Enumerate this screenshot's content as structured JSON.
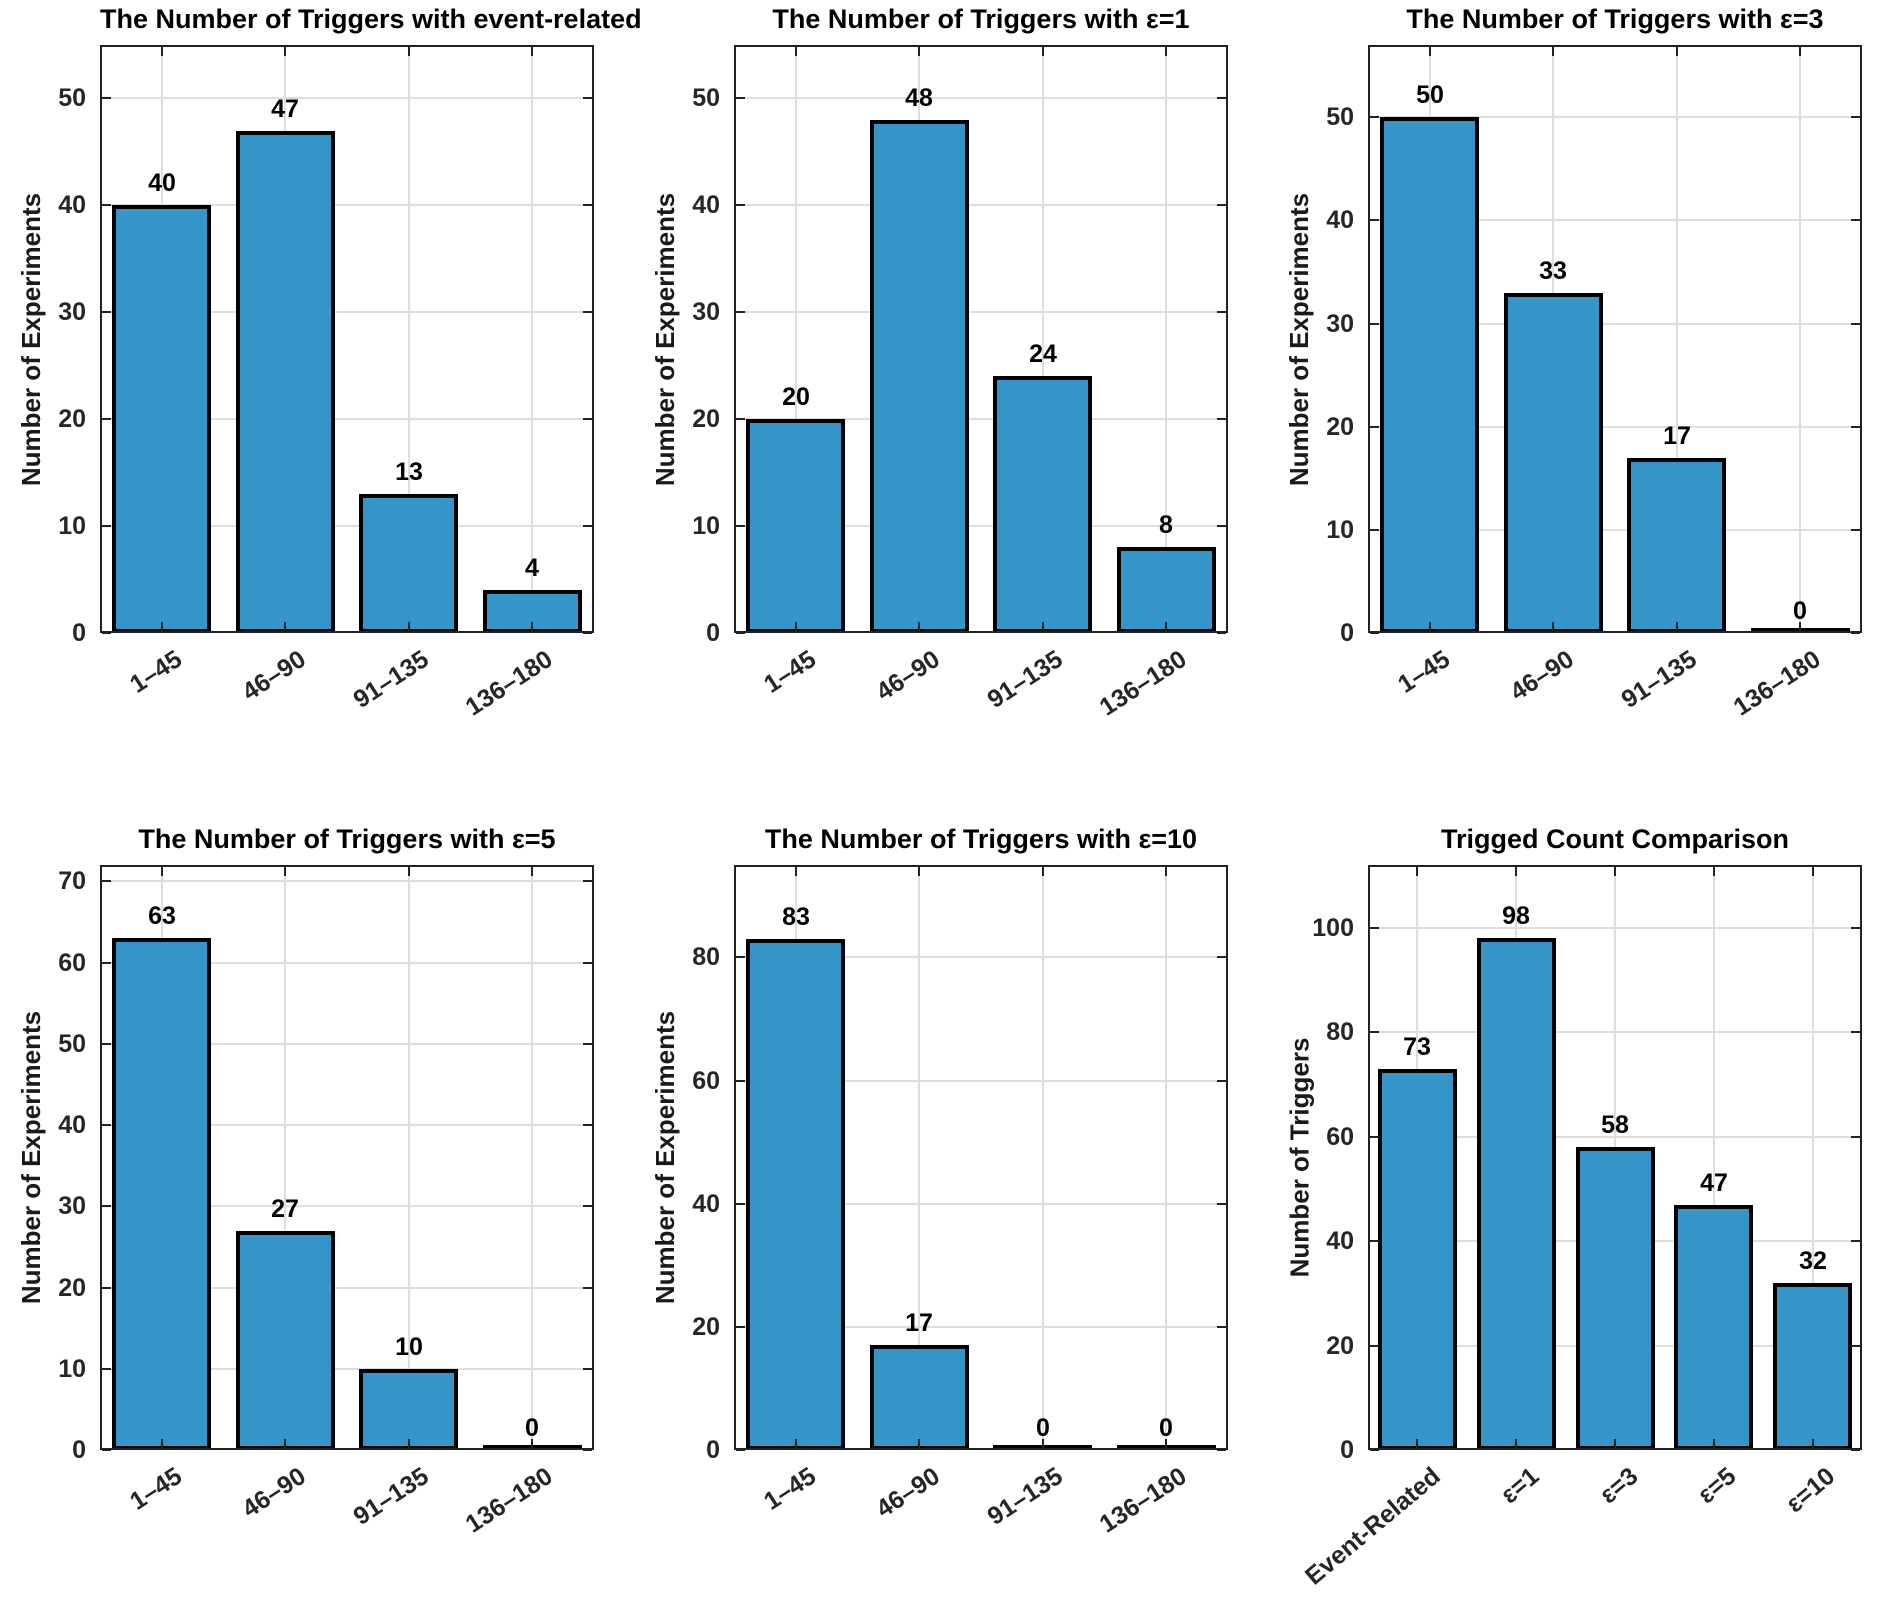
{
  "figure": {
    "background": "#ffffff"
  },
  "colors": {
    "bar_fill": "#3496c8",
    "bar_edge": "#000000",
    "axis": "#222222",
    "grid": "#dedede",
    "tick_text": "#262626",
    "title_text": "#000000"
  },
  "chart_data": [
    {
      "type": "bar",
      "title": "The Number of Triggers with event-related",
      "ylabel": "Number of Experiments",
      "xlabel": "",
      "categories": [
        "1–45",
        "46–90",
        "91–135",
        "136–180"
      ],
      "values": [
        40,
        47,
        13,
        4
      ],
      "yticks": [
        0,
        10,
        20,
        30,
        40,
        50
      ],
      "ylim": [
        0,
        55
      ],
      "grid": "on",
      "bar_labels": true,
      "legend": "none",
      "x_tick_rotation_deg": 33,
      "bar_width_ratio": 0.8
    },
    {
      "type": "bar",
      "title": "The Number of Triggers with ε=1",
      "ylabel": "Number of Experiments",
      "xlabel": "",
      "categories": [
        "1–45",
        "46–90",
        "91–135",
        "136–180"
      ],
      "values": [
        20,
        48,
        24,
        8
      ],
      "yticks": [
        0,
        10,
        20,
        30,
        40,
        50
      ],
      "ylim": [
        0,
        55
      ],
      "grid": "on",
      "bar_labels": true,
      "legend": "none",
      "x_tick_rotation_deg": 33,
      "bar_width_ratio": 0.8
    },
    {
      "type": "bar",
      "title": "The Number of Triggers with ε=3",
      "ylabel": "Number of Experiments",
      "xlabel": "",
      "categories": [
        "1–45",
        "46–90",
        "91–135",
        "136–180"
      ],
      "values": [
        50,
        33,
        17,
        0
      ],
      "yticks": [
        0,
        10,
        20,
        30,
        40,
        50
      ],
      "ylim": [
        0,
        57
      ],
      "grid": "on",
      "bar_labels": true,
      "legend": "none",
      "x_tick_rotation_deg": 33,
      "bar_width_ratio": 0.8
    },
    {
      "type": "bar",
      "title": "The Number of Triggers with ε=5",
      "ylabel": "Number of Experiments",
      "xlabel": "",
      "categories": [
        "1–45",
        "46–90",
        "91–135",
        "136–180"
      ],
      "values": [
        63,
        27,
        10,
        0
      ],
      "yticks": [
        0,
        10,
        20,
        30,
        40,
        50,
        60,
        70
      ],
      "ylim": [
        0,
        72
      ],
      "grid": "on",
      "bar_labels": true,
      "legend": "none",
      "x_tick_rotation_deg": 33,
      "bar_width_ratio": 0.8
    },
    {
      "type": "bar",
      "title": "The Number of Triggers with ε=10",
      "ylabel": "Number of Experiments",
      "xlabel": "",
      "categories": [
        "1–45",
        "46–90",
        "91–135",
        "136–180"
      ],
      "values": [
        83,
        17,
        0,
        0
      ],
      "yticks": [
        0,
        20,
        40,
        60,
        80
      ],
      "ylim": [
        0,
        95
      ],
      "grid": "on",
      "bar_labels": true,
      "legend": "none",
      "x_tick_rotation_deg": 33,
      "bar_width_ratio": 0.8
    },
    {
      "type": "bar",
      "title": "Trigged Count Comparison",
      "ylabel": "Number of Triggers",
      "xlabel": "",
      "categories": [
        "Event-Related",
        "ε=1",
        "ε=3",
        "ε=5",
        "ε=10"
      ],
      "values": [
        73,
        98,
        58,
        47,
        32
      ],
      "yticks": [
        0,
        20,
        40,
        60,
        80,
        100
      ],
      "ylim": [
        0,
        112
      ],
      "grid": "on",
      "bar_labels": true,
      "legend": "none",
      "x_tick_rotation_deg": 40,
      "bar_width_ratio": 0.8
    }
  ]
}
